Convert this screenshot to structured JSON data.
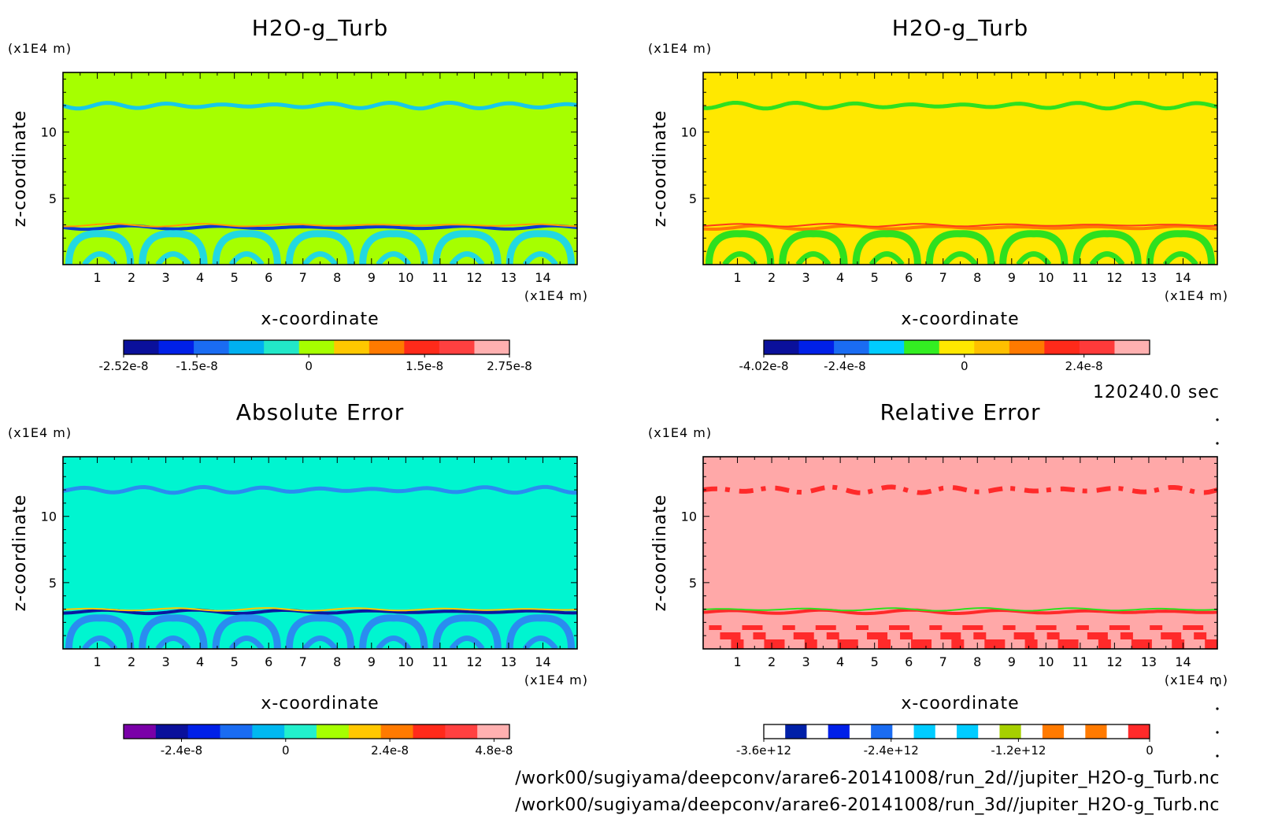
{
  "panels": [
    {
      "title": "H2O-g_Turb",
      "x_unit": "(x1E4 m)",
      "y_unit": "(x1E4 m)",
      "xlabel": "x-coordinate",
      "ylabel": "z-coordinate",
      "x_ticks": [
        "1",
        "2",
        "3",
        "4",
        "5",
        "6",
        "7",
        "8",
        "9",
        "10",
        "11",
        "12",
        "13",
        "14"
      ],
      "y_ticks": [
        "5",
        "10"
      ],
      "background": "#a6ff00",
      "colorbar": {
        "colors": [
          "#0a109b",
          "#0020e8",
          "#1a6cf2",
          "#00b0f0",
          "#22e8c8",
          "#a6ff00",
          "#ffc800",
          "#ff7a00",
          "#ff2a1a",
          "#ff4040",
          "#ffb0b0"
        ],
        "labels": [
          "-2.52e-8",
          "-1.5e-8",
          "0",
          "1.5e-8",
          "2.75e-8"
        ]
      }
    },
    {
      "title": "H2O-g_Turb",
      "x_unit": "(x1E4 m)",
      "y_unit": "(x1E4 m)",
      "xlabel": "x-coordinate",
      "ylabel": "z-coordinate",
      "x_ticks": [
        "1",
        "2",
        "3",
        "4",
        "5",
        "6",
        "7",
        "8",
        "9",
        "10",
        "11",
        "12",
        "13",
        "14"
      ],
      "y_ticks": [
        "5",
        "10"
      ],
      "background": "#ffe800",
      "colorbar": {
        "colors": [
          "#0a109b",
          "#0020e8",
          "#1a6cf2",
          "#00ccff",
          "#33ee22",
          "#ffe800",
          "#ffc000",
          "#ff7a00",
          "#ff2a1a",
          "#ff3a3a",
          "#ffb0b0"
        ],
        "labels": [
          "-4.02e-8",
          "-2.4e-8",
          "0",
          "2.4e-8"
        ]
      }
    },
    {
      "title": "Absolute Error",
      "x_unit": "(x1E4 m)",
      "y_unit": "(x1E4 m)",
      "xlabel": "x-coordinate",
      "ylabel": "z-coordinate",
      "x_ticks": [
        "1",
        "2",
        "3",
        "4",
        "5",
        "6",
        "7",
        "8",
        "9",
        "10",
        "11",
        "12",
        "13",
        "14"
      ],
      "y_ticks": [
        "5",
        "10"
      ],
      "background": "#00f5d0",
      "colorbar": {
        "colors": [
          "#7a00a8",
          "#0a109b",
          "#0020e8",
          "#1a6cf2",
          "#00b8f0",
          "#22f0cc",
          "#a6ff00",
          "#ffc800",
          "#ff7a00",
          "#ff2a1a",
          "#ff4040",
          "#ffb0b0"
        ],
        "labels": [
          "-2.4e-8",
          "0",
          "2.4e-8",
          "4.8e-8"
        ]
      }
    },
    {
      "title": "Relative Error",
      "x_unit": "(x1E4 m)",
      "y_unit": "(x1E4 m)",
      "xlabel": "x-coordinate",
      "ylabel": "z-coordinate",
      "x_ticks": [
        "1",
        "2",
        "3",
        "4",
        "5",
        "6",
        "7",
        "8",
        "9",
        "10",
        "11",
        "12",
        "13",
        "14"
      ],
      "y_ticks": [
        "5",
        "10"
      ],
      "background": "#ffa8a8",
      "colorbar": {
        "colors": [
          "#ffffff",
          "#0020a8",
          "#ffffff",
          "#0020e8",
          "#ffffff",
          "#1a6cf2",
          "#ffffff",
          "#00ccff",
          "#ffffff",
          "#00ccff",
          "#ffffff",
          "#a6d000",
          "#ffffff",
          "#ff7a00",
          "#ffffff",
          "#ff7a00",
          "#ffffff",
          "#ff2a2a"
        ],
        "labels": [
          "-3.6e+12",
          "-2.4e+12",
          "-1.2e+12",
          "0"
        ]
      }
    }
  ],
  "time_label": "120240.0 sec",
  "footer": [
    "/work00/sugiyama/deepconv/arare6-20141008/run_2d//jupiter_H2O-g_Turb.nc",
    "/work00/sugiyama/deepconv/arare6-20141008/run_3d//jupiter_H2O-g_Turb.nc"
  ],
  "chart_data": [
    {
      "type": "heatmap",
      "title": "H2O-g_Turb",
      "xlabel": "x-coordinate",
      "ylabel": "z-coordinate",
      "x_unit": "(x1E4 m)",
      "y_unit": "(x1E4 m)",
      "xlim": [
        0,
        15
      ],
      "ylim": [
        0,
        14.5
      ],
      "colorbar_ticks": [
        "-2.52e-8",
        "-1.5e-8",
        "0",
        "1.5e-8",
        "2.75e-8"
      ]
    },
    {
      "type": "heatmap",
      "title": "H2O-g_Turb",
      "xlabel": "x-coordinate",
      "ylabel": "z-coordinate",
      "x_unit": "(x1E4 m)",
      "y_unit": "(x1E4 m)",
      "xlim": [
        0,
        15
      ],
      "ylim": [
        0,
        14.5
      ],
      "colorbar_ticks": [
        "-4.02e-8",
        "-2.4e-8",
        "0",
        "2.4e-8"
      ]
    },
    {
      "type": "heatmap",
      "title": "Absolute Error",
      "xlabel": "x-coordinate",
      "ylabel": "z-coordinate",
      "x_unit": "(x1E4 m)",
      "y_unit": "(x1E4 m)",
      "xlim": [
        0,
        15
      ],
      "ylim": [
        0,
        14.5
      ],
      "colorbar_ticks": [
        "-2.4e-8",
        "0",
        "2.4e-8",
        "4.8e-8"
      ]
    },
    {
      "type": "heatmap",
      "title": "Relative Error",
      "xlabel": "x-coordinate",
      "ylabel": "z-coordinate",
      "x_unit": "(x1E4 m)",
      "y_unit": "(x1E4 m)",
      "xlim": [
        0,
        15
      ],
      "ylim": [
        0,
        14.5
      ],
      "colorbar_ticks": [
        "-3.6e+12",
        "-2.4e+12",
        "-1.2e+12",
        "0"
      ]
    }
  ]
}
